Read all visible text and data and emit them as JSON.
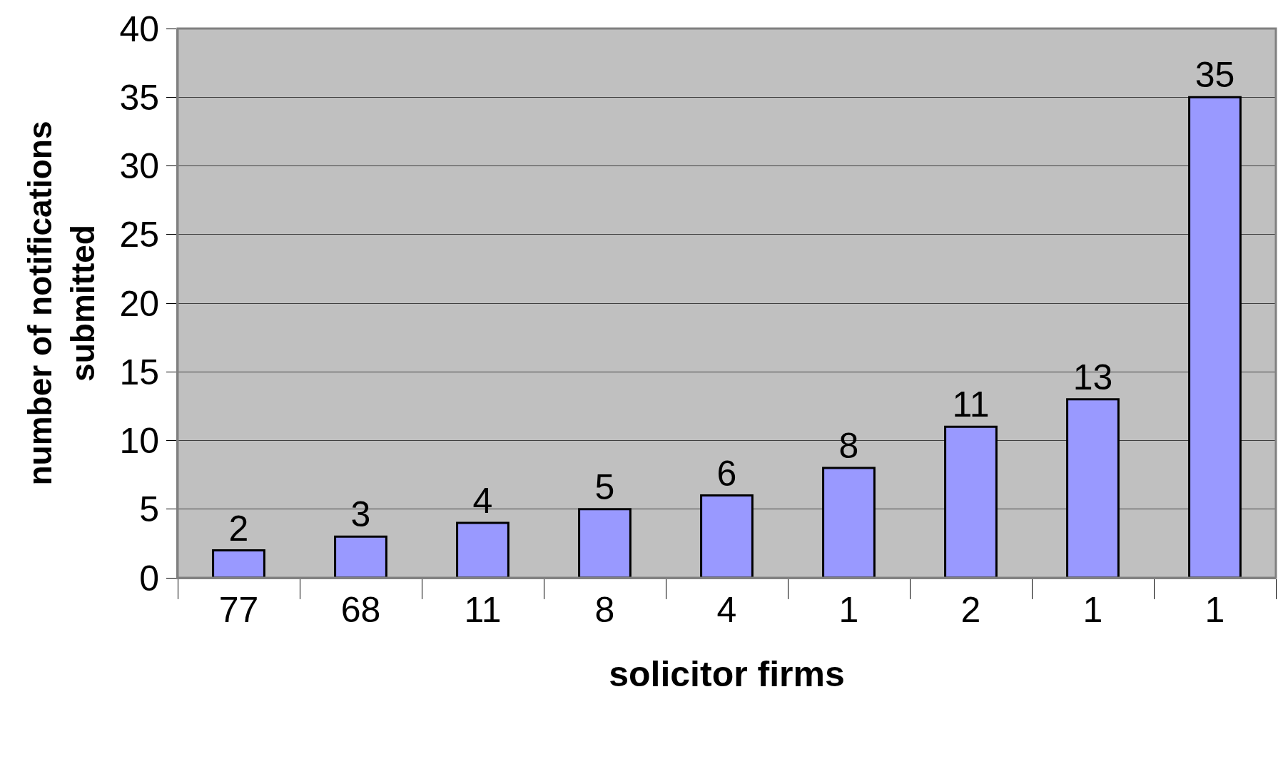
{
  "chart_data": {
    "type": "bar",
    "xlabel": "solicitor firms",
    "ylabel": "number of notifications\nsubmitted",
    "categories": [
      "77",
      "68",
      "11",
      "8",
      "4",
      "1",
      "2",
      "1",
      "1"
    ],
    "values": [
      2,
      3,
      4,
      5,
      6,
      8,
      11,
      13,
      35
    ],
    "color": "#9999ff",
    "ylim": [
      0,
      40
    ],
    "yticks": [
      0,
      5,
      10,
      15,
      20,
      25,
      30,
      35,
      40
    ],
    "grid": "y",
    "data_labels": true
  }
}
